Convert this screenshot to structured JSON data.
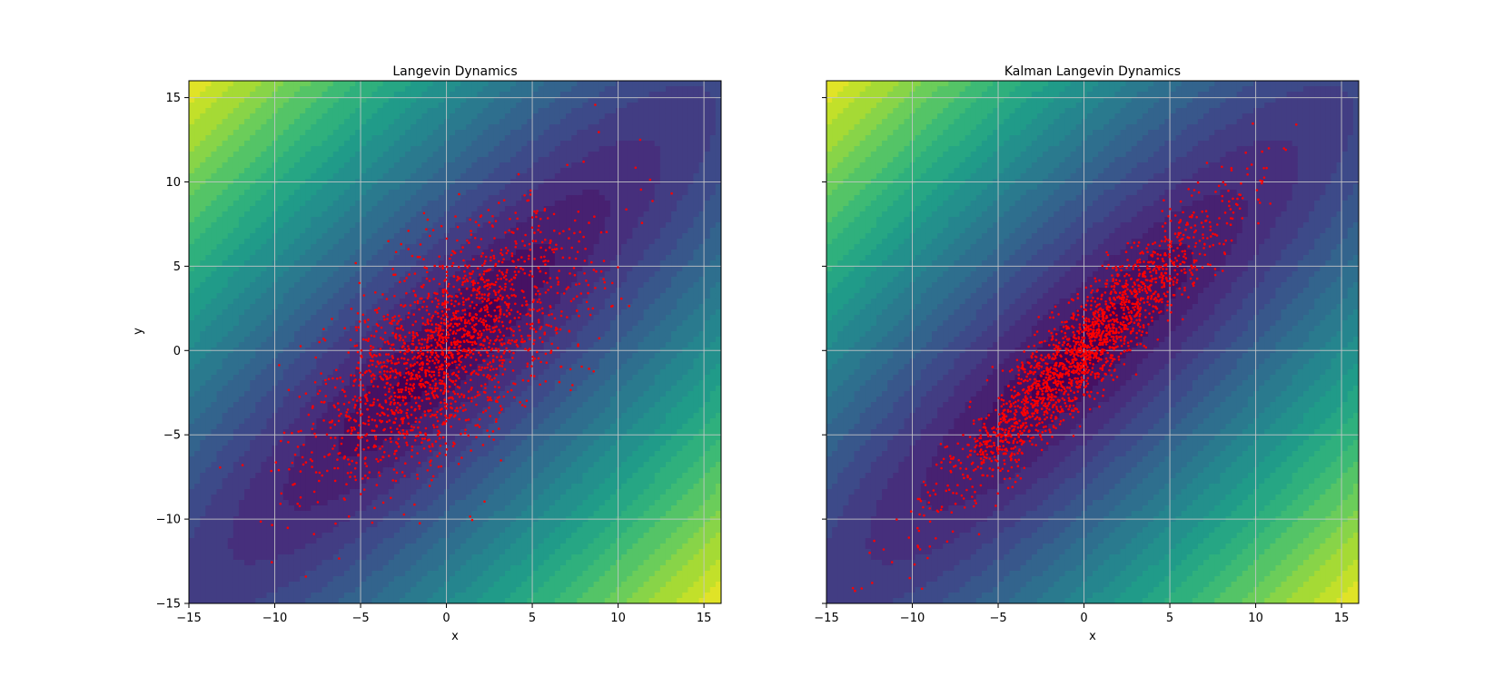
{
  "chart_data": [
    {
      "type": "scatter",
      "title": "Langevin Dynamics",
      "xlabel": "x",
      "ylabel": "y",
      "xlim": [
        -15,
        16
      ],
      "ylim": [
        -15,
        16
      ],
      "xticks": [
        -15,
        -10,
        -5,
        0,
        5,
        10,
        15
      ],
      "yticks": [
        -15,
        -10,
        -5,
        0,
        5,
        10,
        15
      ],
      "xtick_labels": [
        "−15",
        "−10",
        "−5",
        "0",
        "5",
        "10",
        "15"
      ],
      "ytick_labels": [
        "−15",
        "−10",
        "−5",
        "0",
        "5",
        "10",
        "15"
      ],
      "show_ytick_labels": true,
      "grid": true,
      "background": "contourf of Gaussian energy, viridis colormap",
      "point_color": "#ff0000",
      "samples": {
        "n": 2000,
        "mean": [
          0,
          0
        ],
        "std_x": 3.8,
        "std_y": 3.8,
        "corr": 0.6,
        "seed": 11
      }
    },
    {
      "type": "scatter",
      "title": "Kalman Langevin Dynamics",
      "xlabel": "x",
      "ylabel": "",
      "xlim": [
        -15,
        16
      ],
      "ylim": [
        -15,
        16
      ],
      "xticks": [
        -15,
        -10,
        -5,
        0,
        5,
        10,
        15
      ],
      "yticks": [
        -15,
        -10,
        -5,
        0,
        5,
        10,
        15
      ],
      "xtick_labels": [
        "−15",
        "−10",
        "−5",
        "0",
        "5",
        "10",
        "15"
      ],
      "ytick_labels": [
        "−15",
        "−10",
        "−5",
        "0",
        "5",
        "10",
        "15"
      ],
      "show_ytick_labels": false,
      "grid": true,
      "background": "contourf of Gaussian energy, viridis colormap",
      "point_color": "#ff0000",
      "samples": {
        "n": 2000,
        "mean": [
          0,
          0
        ],
        "std_x": 4.0,
        "std_y": 4.3,
        "corr": 0.93,
        "seed": 29
      }
    }
  ],
  "colors": {
    "viridis": [
      "#440154",
      "#482878",
      "#3e4989",
      "#31688e",
      "#26828e",
      "#1f9e89",
      "#35b779",
      "#6ece58",
      "#b5de2b",
      "#fde725"
    ],
    "grid": "#c8c8c8",
    "axes_edge": "#000000"
  }
}
